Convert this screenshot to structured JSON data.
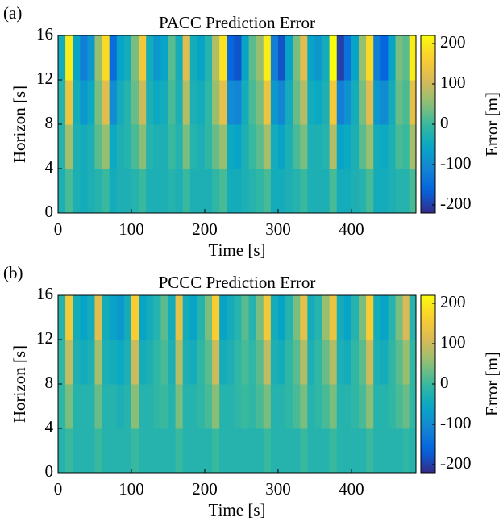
{
  "chart_data": [
    {
      "type": "heatmap",
      "panel_label": "(a)",
      "title": "PACC Prediction Error",
      "x_label": "Time [s]",
      "y_label": "Horizon [s]",
      "colorbar_label": "Error [m]",
      "x": [
        5,
        15,
        25,
        35,
        45,
        55,
        65,
        75,
        85,
        95,
        105,
        115,
        125,
        135,
        145,
        155,
        165,
        175,
        185,
        195,
        205,
        215,
        225,
        235,
        245,
        255,
        265,
        275,
        285,
        295,
        305,
        315,
        325,
        335,
        345,
        355,
        365,
        375,
        385,
        395,
        405,
        415,
        425,
        435,
        445,
        455,
        465,
        475,
        485
      ],
      "y": [
        2,
        6,
        10,
        14
      ],
      "z": [
        [
          -30,
          10,
          -30,
          -40,
          -30,
          -20,
          0,
          -40,
          -30,
          -30,
          -20,
          0,
          -30,
          -30,
          -30,
          -20,
          -30,
          0,
          -30,
          -30,
          -30,
          -10,
          10,
          -40,
          -40,
          -30,
          -20,
          -10,
          10,
          -40,
          -40,
          -30,
          -20,
          0,
          -30,
          -30,
          -30,
          10,
          -40,
          -40,
          -30,
          -20,
          10,
          -40,
          -40,
          -30,
          -20,
          -20,
          10
        ],
        [
          -20,
          70,
          -30,
          -40,
          -30,
          20,
          60,
          -50,
          -30,
          -20,
          10,
          50,
          -20,
          -30,
          -30,
          0,
          -20,
          40,
          -20,
          -30,
          -10,
          30,
          60,
          -50,
          -60,
          -30,
          0,
          20,
          70,
          -40,
          -60,
          -30,
          10,
          40,
          -30,
          -30,
          -20,
          80,
          -60,
          -50,
          -30,
          20,
          60,
          -40,
          -50,
          -30,
          10,
          0,
          70
        ],
        [
          -20,
          140,
          -40,
          -80,
          -50,
          40,
          120,
          -100,
          -40,
          -20,
          30,
          100,
          -30,
          -50,
          -40,
          10,
          -30,
          80,
          -30,
          -40,
          -10,
          60,
          130,
          -100,
          -110,
          -40,
          10,
          40,
          140,
          -80,
          -110,
          -40,
          30,
          80,
          -40,
          -50,
          -30,
          150,
          -120,
          -90,
          -40,
          40,
          120,
          -80,
          -100,
          -40,
          30,
          10,
          130
        ],
        [
          -40,
          200,
          -60,
          -120,
          -80,
          60,
          180,
          -150,
          -60,
          -40,
          40,
          150,
          -40,
          -80,
          -60,
          20,
          -40,
          120,
          -40,
          -60,
          -20,
          80,
          190,
          -160,
          -180,
          -60,
          20,
          60,
          200,
          -120,
          -180,
          -60,
          40,
          120,
          -60,
          -80,
          -40,
          220,
          -200,
          -140,
          -60,
          60,
          180,
          -120,
          -160,
          -60,
          40,
          20,
          200
        ]
      ],
      "xlim": [
        0,
        488
      ],
      "ylim": [
        0,
        16
      ],
      "xticks": [
        0,
        100,
        200,
        300,
        400
      ],
      "yticks": [
        0,
        4,
        8,
        12,
        16
      ],
      "clim": [
        -220,
        220
      ],
      "cticks": [
        -200,
        -100,
        0,
        100,
        200
      ],
      "colormap": "parula"
    },
    {
      "type": "heatmap",
      "panel_label": "(b)",
      "title": "PCCC Prediction Error",
      "x_label": "Time [s]",
      "y_label": "Horizon [s]",
      "colorbar_label": "Error [m]",
      "x": [
        5,
        15,
        25,
        35,
        45,
        55,
        65,
        75,
        85,
        95,
        105,
        115,
        125,
        135,
        145,
        155,
        165,
        175,
        185,
        195,
        205,
        215,
        225,
        235,
        245,
        255,
        265,
        275,
        285,
        295,
        305,
        315,
        325,
        335,
        345,
        355,
        365,
        375,
        385,
        395,
        405,
        415,
        425,
        435,
        445,
        455,
        465,
        475,
        485
      ],
      "y": [
        2,
        6,
        10,
        14
      ],
      "z": [
        [
          -20,
          0,
          -20,
          -20,
          -20,
          0,
          -20,
          -20,
          -20,
          -20,
          0,
          -20,
          -20,
          -20,
          -20,
          -20,
          0,
          -20,
          -20,
          -20,
          -20,
          0,
          -20,
          -20,
          -20,
          -20,
          -20,
          -20,
          0,
          -20,
          -20,
          -20,
          -20,
          0,
          -20,
          -20,
          -20,
          0,
          -20,
          -20,
          -20,
          -20,
          0,
          -20,
          -20,
          -20,
          -20,
          -10,
          -20
        ],
        [
          -10,
          40,
          -20,
          -20,
          -20,
          30,
          -20,
          -20,
          -30,
          -20,
          50,
          -20,
          -20,
          -10,
          0,
          -20,
          40,
          -20,
          -20,
          -10,
          10,
          50,
          -20,
          -20,
          -10,
          0,
          -10,
          10,
          40,
          -20,
          -20,
          -10,
          10,
          40,
          -20,
          -10,
          10,
          40,
          -20,
          -20,
          -10,
          10,
          50,
          -20,
          -20,
          -10,
          10,
          30,
          -10
        ],
        [
          -10,
          90,
          -30,
          -40,
          -30,
          70,
          -30,
          -40,
          -50,
          -30,
          100,
          -40,
          -30,
          -10,
          10,
          -30,
          80,
          -30,
          -40,
          -10,
          20,
          100,
          -40,
          -30,
          -10,
          10,
          -10,
          20,
          90,
          -30,
          -40,
          -10,
          20,
          80,
          -30,
          -10,
          30,
          80,
          -30,
          -40,
          -10,
          20,
          100,
          -30,
          -40,
          -10,
          20,
          60,
          -10
        ],
        [
          -20,
          150,
          -40,
          -60,
          -40,
          120,
          -40,
          -60,
          -80,
          -40,
          160,
          -60,
          -40,
          -20,
          20,
          -40,
          130,
          -40,
          -60,
          -20,
          40,
          160,
          -60,
          -40,
          -20,
          20,
          -20,
          40,
          150,
          -40,
          -60,
          -20,
          40,
          130,
          -40,
          -20,
          60,
          140,
          -40,
          -60,
          -20,
          40,
          160,
          -40,
          -60,
          -20,
          40,
          110,
          -20
        ]
      ],
      "xlim": [
        0,
        488
      ],
      "ylim": [
        0,
        16
      ],
      "xticks": [
        0,
        100,
        200,
        300,
        400
      ],
      "yticks": [
        0,
        4,
        8,
        12,
        16
      ],
      "clim": [
        -220,
        220
      ],
      "cticks": [
        -200,
        -100,
        0,
        100,
        200
      ],
      "colormap": "parula"
    }
  ]
}
